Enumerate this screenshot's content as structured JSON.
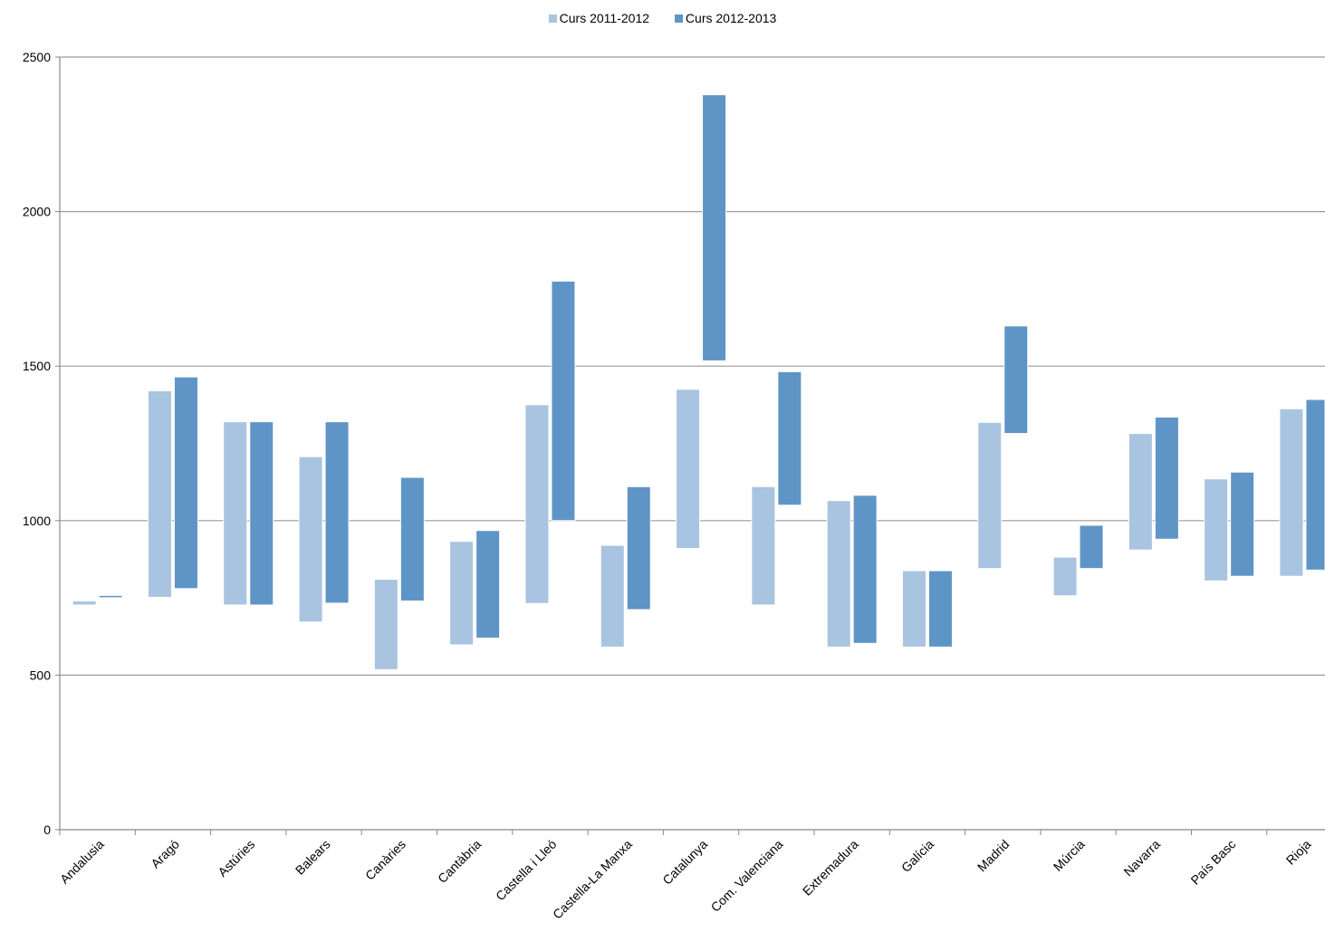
{
  "chart_data": {
    "type": "bar",
    "subtype": "floating-range",
    "categories": [
      "Andalusia",
      "Aragó",
      "Astúries",
      "Balears",
      "Canàries",
      "Cantàbria",
      "Castella i Lleó",
      "Castella-La Manxa",
      "Catalunya",
      "Com. Valenciana",
      "Extremadura",
      "Galícia",
      "Madrid",
      "Múrcia",
      "Navarra",
      "País Basc",
      "Rioja"
    ],
    "series": [
      {
        "name": "Curs 2011-2012",
        "color": "#a9c4e0",
        "low": [
          727,
          752,
          727,
          672,
          518,
          598,
          732,
          591,
          910,
          727,
          591,
          591,
          845,
          757,
          905,
          805,
          820
        ],
        "high": [
          740,
          1420,
          1320,
          1207,
          810,
          933,
          1375,
          920,
          1425,
          1110,
          1065,
          838,
          1318,
          882,
          1282,
          1135,
          1362
        ]
      },
      {
        "name": "Curs 2012-2013",
        "color": "#5f95c6",
        "low": [
          752,
          780,
          727,
          733,
          740,
          620,
          1000,
          712,
          1517,
          1050,
          603,
          591,
          1282,
          845,
          940,
          820,
          840
        ],
        "high": [
          758,
          1465,
          1320,
          1320,
          1140,
          968,
          1775,
          1110,
          2378,
          1482,
          1082,
          838,
          1630,
          985,
          1335,
          1157,
          1392
        ]
      }
    ],
    "ylim": [
      0,
      2500
    ],
    "yticks": [
      "0",
      "500",
      "1000",
      "1500",
      "2000",
      "2500"
    ],
    "grid": true,
    "legend_position": "top-center",
    "title": "",
    "xlabel": "",
    "ylabel": ""
  }
}
